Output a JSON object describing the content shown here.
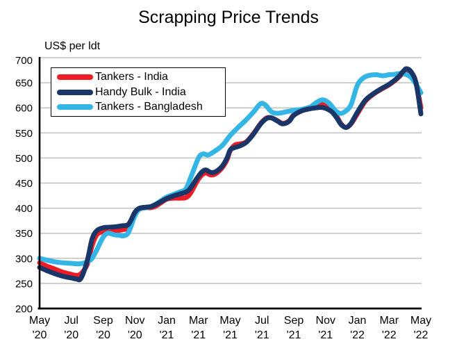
{
  "page": {
    "background": "#ffffff"
  },
  "chart_data": {
    "type": "line",
    "title": "Scrapping Price Trends",
    "y_axis_note": "US$ per ldt",
    "ylim": [
      200,
      700
    ],
    "y_ticks": [
      200,
      250,
      300,
      350,
      400,
      450,
      500,
      550,
      600,
      650,
      700
    ],
    "x_unit": "months since May 2020",
    "x_ticks": [
      {
        "m": 0,
        "line1": "May",
        "line2": "'20"
      },
      {
        "m": 2,
        "line1": "Jul",
        "line2": "'20"
      },
      {
        "m": 4,
        "line1": "Sep",
        "line2": "'20"
      },
      {
        "m": 6,
        "line1": "Nov",
        "line2": "'20"
      },
      {
        "m": 8,
        "line1": "Jan",
        "line2": "'21"
      },
      {
        "m": 10,
        "line1": "Mar",
        "line2": "'21"
      },
      {
        "m": 12,
        "line1": "May",
        "line2": "'21"
      },
      {
        "m": 14,
        "line1": "Jul",
        "line2": "'21"
      },
      {
        "m": 16,
        "line1": "Sep",
        "line2": "'21"
      },
      {
        "m": 18,
        "line1": "Nov",
        "line2": "'21"
      },
      {
        "m": 20,
        "line1": "Jan",
        "line2": "'22"
      },
      {
        "m": 22,
        "line1": "Mar",
        "line2": "'22"
      },
      {
        "m": 24,
        "line1": "May",
        "line2": "'22"
      }
    ],
    "grid": "horizontal",
    "legend_position": "top-left-inside",
    "colors": {
      "grid": "#C0C0C0",
      "axis": "#000000",
      "background": "#FFFFFF"
    },
    "line_width": 7,
    "series": [
      {
        "name": "Tankers - India",
        "color": "#EE1C25",
        "z": 1,
        "points": [
          [
            0,
            291
          ],
          [
            0.5,
            284
          ],
          [
            1,
            278
          ],
          [
            1.5,
            272
          ],
          [
            2,
            268
          ],
          [
            2.3,
            266
          ],
          [
            2.6,
            269
          ],
          [
            3,
            288
          ],
          [
            3.3,
            325
          ],
          [
            3.6,
            347
          ],
          [
            4,
            353
          ],
          [
            4.4,
            352
          ],
          [
            4.8,
            355
          ],
          [
            5.2,
            357
          ],
          [
            5.6,
            362
          ],
          [
            6,
            388
          ],
          [
            6.3,
            398
          ],
          [
            6.7,
            401
          ],
          [
            7,
            401
          ],
          [
            7.3,
            404
          ],
          [
            7.7,
            412
          ],
          [
            8,
            418
          ],
          [
            8.4,
            420
          ],
          [
            8.8,
            420
          ],
          [
            9.2,
            421
          ],
          [
            9.5,
            430
          ],
          [
            10,
            458
          ],
          [
            10.4,
            470
          ],
          [
            10.8,
            466
          ],
          [
            11.1,
            469
          ],
          [
            11.5,
            481
          ],
          [
            11.8,
            497
          ],
          [
            12,
            515
          ],
          [
            12.3,
            526
          ],
          [
            12.6,
            528
          ],
          [
            13,
            532
          ],
          [
            13.4,
            546
          ],
          [
            13.8,
            564
          ],
          [
            14,
            572
          ],
          [
            14.3,
            580
          ],
          [
            14.6,
            580
          ],
          [
            15,
            574
          ],
          [
            15.3,
            569
          ],
          [
            15.7,
            574
          ],
          [
            16,
            586
          ],
          [
            16.5,
            596
          ],
          [
            17,
            601
          ],
          [
            17.4,
            605
          ],
          [
            17.7,
            608
          ],
          [
            18,
            605
          ],
          [
            18.4,
            596
          ],
          [
            18.7,
            583
          ],
          [
            19,
            567
          ],
          [
            19.3,
            561
          ],
          [
            19.6,
            568
          ],
          [
            20,
            588
          ],
          [
            20.5,
            613
          ],
          [
            21,
            627
          ],
          [
            21.5,
            637
          ],
          [
            22,
            646
          ],
          [
            22.5,
            658
          ],
          [
            22.9,
            670
          ],
          [
            23.1,
            675
          ],
          [
            23.4,
            669
          ],
          [
            23.7,
            648
          ],
          [
            24,
            600
          ]
        ]
      },
      {
        "name": "Handy Bulk - India",
        "color": "#1A3668",
        "z": 3,
        "points": [
          [
            0,
            282
          ],
          [
            0.5,
            275
          ],
          [
            1,
            269
          ],
          [
            1.5,
            264
          ],
          [
            2,
            261
          ],
          [
            2.3,
            259
          ],
          [
            2.6,
            260
          ],
          [
            3,
            295
          ],
          [
            3.3,
            338
          ],
          [
            3.6,
            355
          ],
          [
            4,
            361
          ],
          [
            4.4,
            362
          ],
          [
            4.8,
            363
          ],
          [
            5.2,
            365
          ],
          [
            5.6,
            368
          ],
          [
            6,
            392
          ],
          [
            6.3,
            400
          ],
          [
            6.7,
            402
          ],
          [
            7,
            403
          ],
          [
            7.3,
            407
          ],
          [
            7.7,
            414
          ],
          [
            8,
            419
          ],
          [
            8.4,
            424
          ],
          [
            8.8,
            428
          ],
          [
            9.2,
            432
          ],
          [
            9.5,
            440
          ],
          [
            10,
            464
          ],
          [
            10.4,
            476
          ],
          [
            10.8,
            471
          ],
          [
            11.1,
            473
          ],
          [
            11.5,
            484
          ],
          [
            11.8,
            500
          ],
          [
            12,
            516
          ],
          [
            12.3,
            521
          ],
          [
            12.6,
            524
          ],
          [
            13,
            531
          ],
          [
            13.4,
            545
          ],
          [
            13.8,
            563
          ],
          [
            14,
            571
          ],
          [
            14.3,
            579
          ],
          [
            14.6,
            580
          ],
          [
            15,
            573
          ],
          [
            15.3,
            568
          ],
          [
            15.7,
            573
          ],
          [
            16,
            585
          ],
          [
            16.5,
            594
          ],
          [
            17,
            598
          ],
          [
            17.4,
            600
          ],
          [
            17.7,
            601
          ],
          [
            18,
            599
          ],
          [
            18.4,
            592
          ],
          [
            18.7,
            580
          ],
          [
            19,
            566
          ],
          [
            19.3,
            561
          ],
          [
            19.6,
            569
          ],
          [
            20,
            591
          ],
          [
            20.5,
            615
          ],
          [
            21,
            628
          ],
          [
            21.5,
            638
          ],
          [
            22,
            647
          ],
          [
            22.5,
            659
          ],
          [
            22.9,
            673
          ],
          [
            23.1,
            678
          ],
          [
            23.4,
            671
          ],
          [
            23.7,
            649
          ],
          [
            24,
            588
          ]
        ]
      },
      {
        "name": "Tankers - Bangladesh",
        "color": "#33B5E5",
        "z": 2,
        "points": [
          [
            0,
            300
          ],
          [
            0.5,
            296
          ],
          [
            1,
            293
          ],
          [
            1.5,
            291
          ],
          [
            2,
            290
          ],
          [
            2.5,
            289
          ],
          [
            3,
            293
          ],
          [
            3.3,
            300
          ],
          [
            3.6,
            317
          ],
          [
            4,
            342
          ],
          [
            4.3,
            350
          ],
          [
            4.7,
            347
          ],
          [
            5,
            346
          ],
          [
            5.3,
            345
          ],
          [
            5.6,
            352
          ],
          [
            6,
            385
          ],
          [
            6.3,
            398
          ],
          [
            6.7,
            401
          ],
          [
            7,
            403
          ],
          [
            7.3,
            408
          ],
          [
            7.7,
            416
          ],
          [
            8,
            422
          ],
          [
            8.4,
            427
          ],
          [
            8.8,
            432
          ],
          [
            9.2,
            438
          ],
          [
            9.5,
            460
          ],
          [
            10,
            500
          ],
          [
            10.3,
            508
          ],
          [
            10.6,
            506
          ],
          [
            11,
            513
          ],
          [
            11.5,
            525
          ],
          [
            12,
            545
          ],
          [
            12.5,
            561
          ],
          [
            13,
            576
          ],
          [
            13.5,
            593
          ],
          [
            13.9,
            608
          ],
          [
            14.2,
            606
          ],
          [
            14.6,
            592
          ],
          [
            15,
            589
          ],
          [
            15.5,
            592
          ],
          [
            16,
            595
          ],
          [
            16.5,
            597
          ],
          [
            17,
            601
          ],
          [
            17.4,
            610
          ],
          [
            17.8,
            616
          ],
          [
            18.2,
            610
          ],
          [
            18.6,
            595
          ],
          [
            18.9,
            589
          ],
          [
            19.2,
            592
          ],
          [
            19.6,
            606
          ],
          [
            20,
            645
          ],
          [
            20.4,
            660
          ],
          [
            20.8,
            665
          ],
          [
            21.2,
            666
          ],
          [
            21.6,
            664
          ],
          [
            22,
            666
          ],
          [
            22.4,
            667
          ],
          [
            22.8,
            669
          ],
          [
            23.1,
            666
          ],
          [
            23.4,
            660
          ],
          [
            23.7,
            647
          ],
          [
            24,
            630
          ]
        ]
      }
    ]
  }
}
